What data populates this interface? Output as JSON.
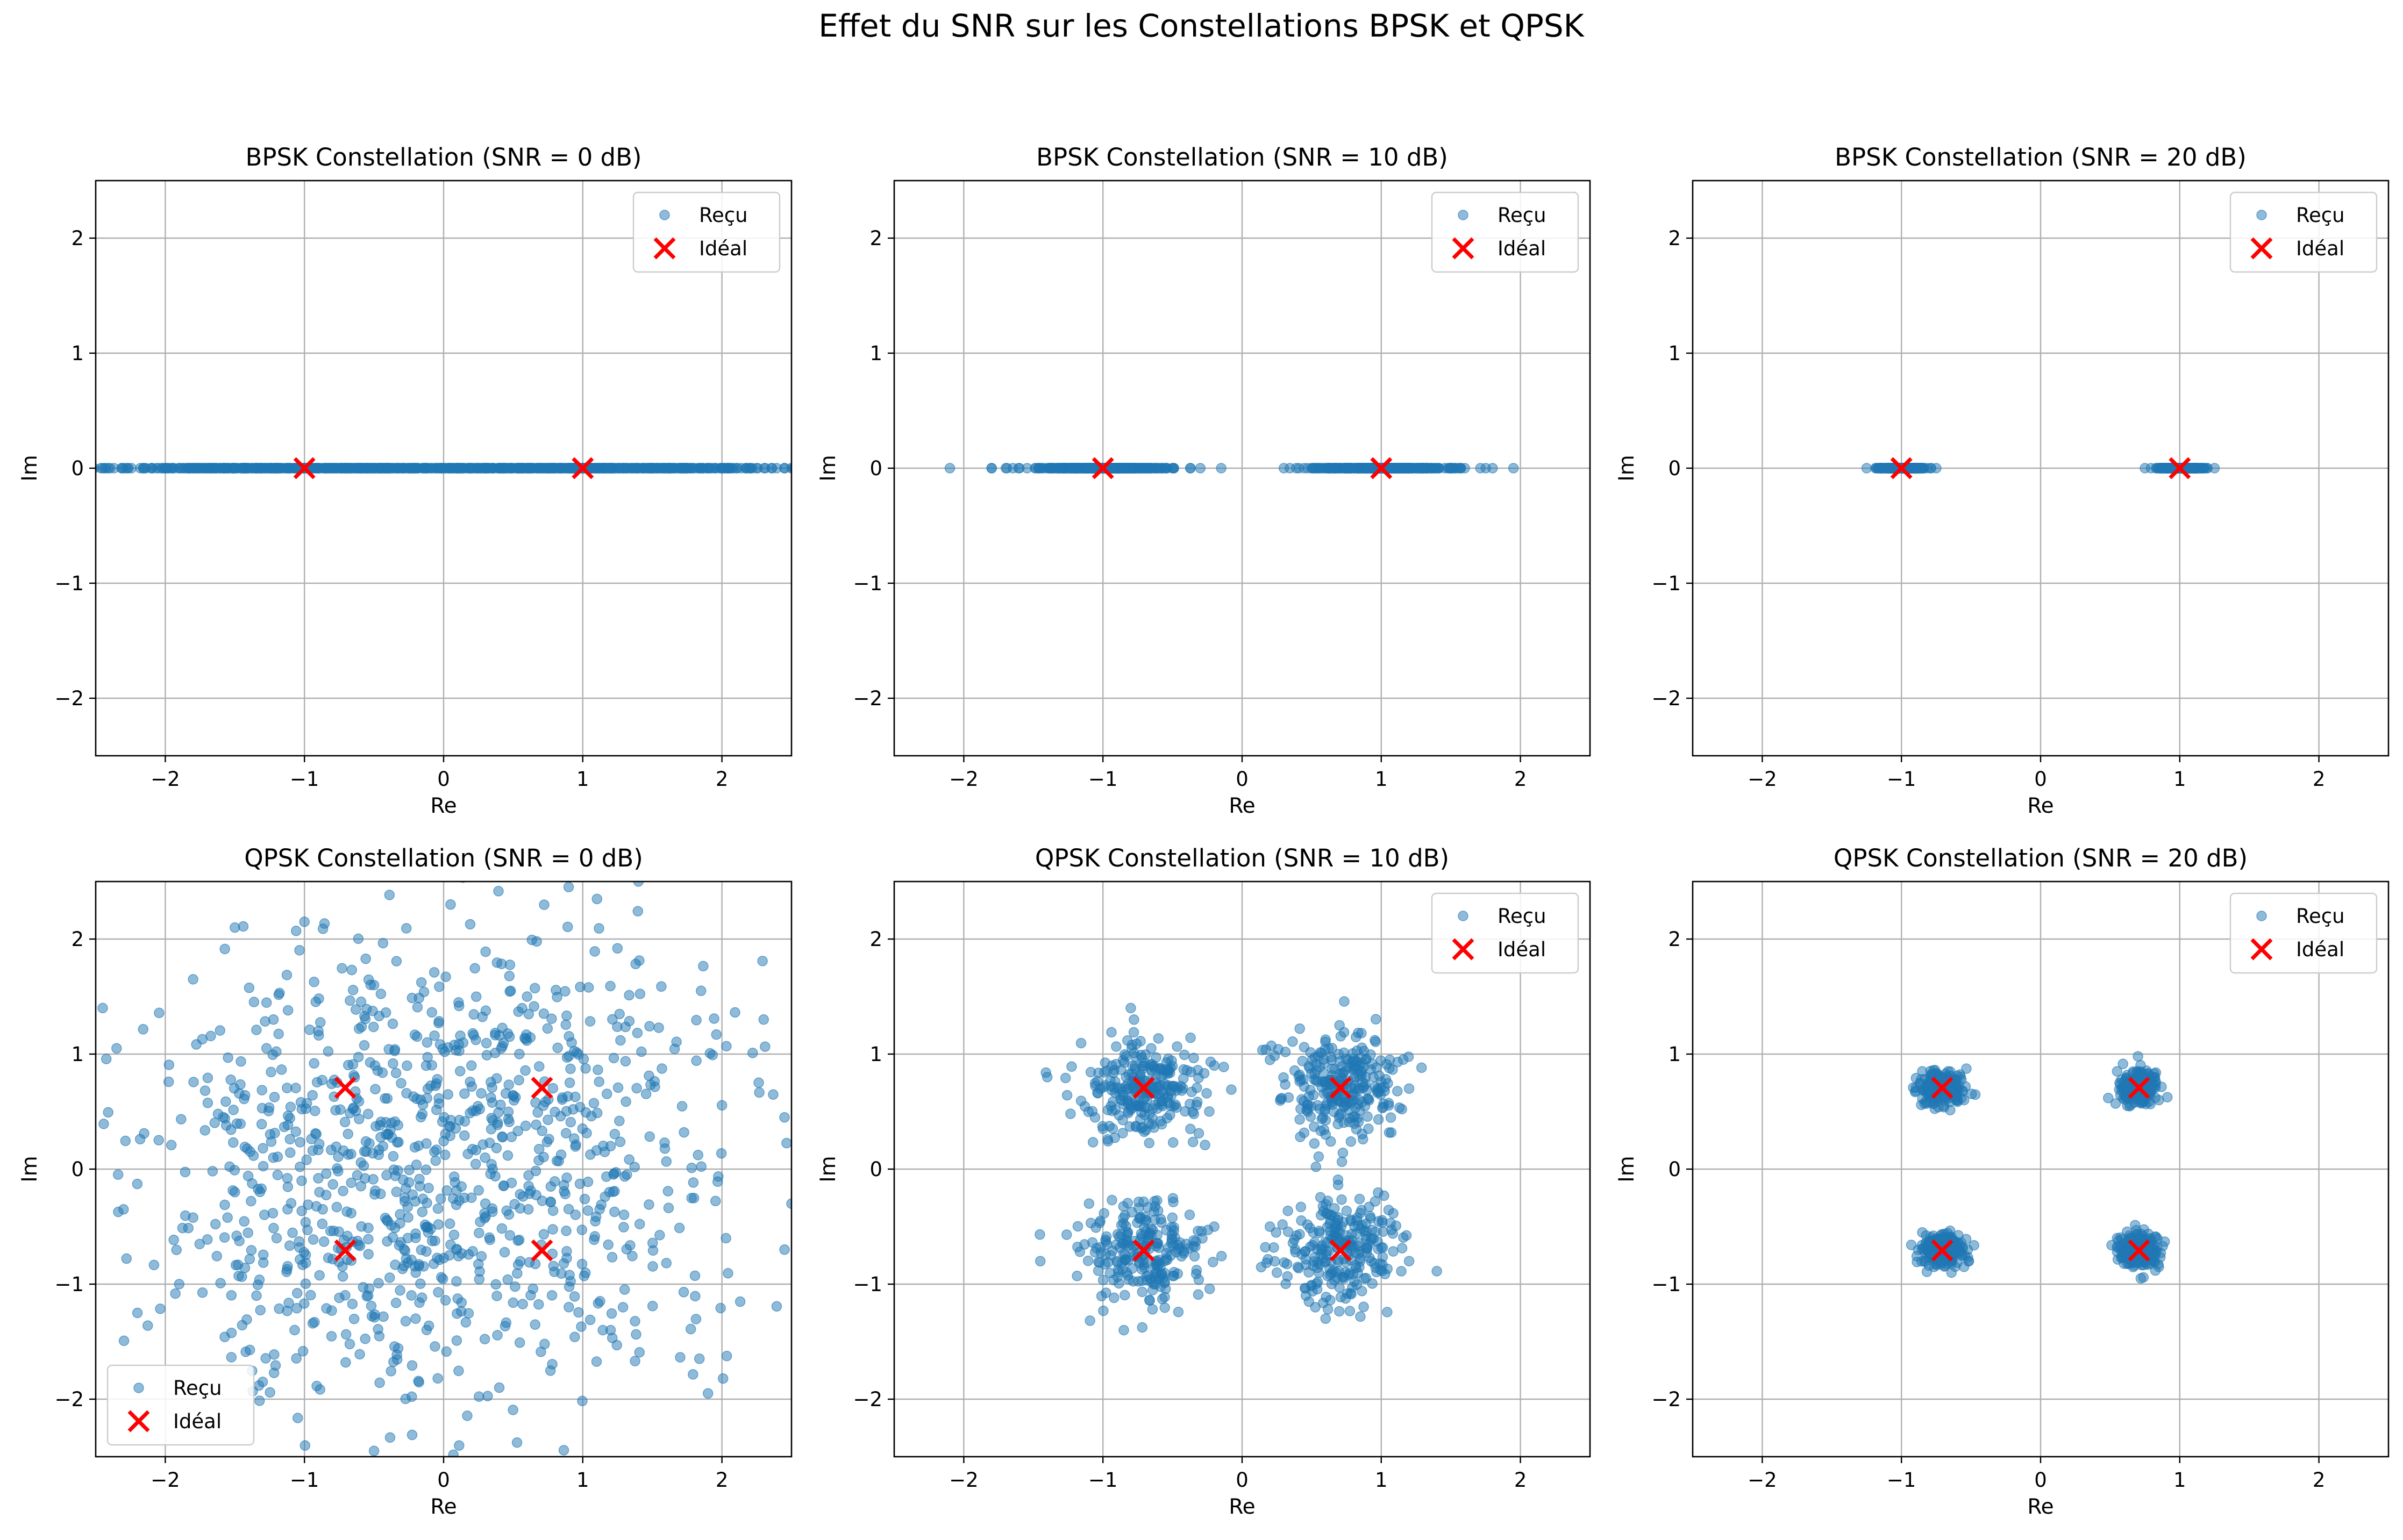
{
  "figure": {
    "title": "Effet du SNR sur les Constellations BPSK et QPSK"
  },
  "colors": {
    "received": "#1f77b4",
    "ideal": "#ff0000",
    "grid": "#b0b0b0",
    "axes": "#000000"
  },
  "chart_data": [
    {
      "type": "scatter",
      "title": "BPSK Constellation (SNR = 0 dB)",
      "xlabel": "Re",
      "ylabel": "Im",
      "xlim": [
        -2.5,
        2.5
      ],
      "ylim": [
        -2.5,
        2.5
      ],
      "xticks": [
        -2,
        -1,
        0,
        1,
        2
      ],
      "yticks": [
        -2,
        -1,
        0,
        1,
        2
      ],
      "grid": true,
      "legend_loc": "upper right",
      "modulation": "BPSK",
      "snr_db": 0,
      "spread": 0.7,
      "seed": 11,
      "series": [
        {
          "name": "Reçu",
          "marker": "circle",
          "points": [
            [
              -2.45,
              0
            ],
            [
              -2.3,
              0
            ],
            [
              -2.1,
              0
            ],
            [
              -1.9,
              0
            ],
            [
              -1.7,
              0
            ],
            [
              -1.5,
              0
            ],
            [
              -1.3,
              0
            ],
            [
              -1.0,
              0
            ],
            [
              -0.7,
              0
            ],
            [
              -0.4,
              0
            ],
            [
              -0.1,
              0
            ],
            [
              0.2,
              0
            ],
            [
              0.5,
              0
            ],
            [
              0.8,
              0
            ],
            [
              1.1,
              0
            ],
            [
              1.4,
              0
            ],
            [
              1.7,
              0
            ],
            [
              2.0,
              0
            ],
            [
              2.2,
              0
            ],
            [
              2.45,
              0
            ]
          ]
        },
        {
          "name": "Idéal",
          "marker": "x",
          "points": [
            [
              -1,
              0
            ],
            [
              1,
              0
            ]
          ]
        }
      ]
    },
    {
      "type": "scatter",
      "title": "BPSK Constellation (SNR = 10 dB)",
      "xlabel": "Re",
      "ylabel": "Im",
      "xlim": [
        -2.5,
        2.5
      ],
      "ylim": [
        -2.5,
        2.5
      ],
      "xticks": [
        -2,
        -1,
        0,
        1,
        2
      ],
      "yticks": [
        -2,
        -1,
        0,
        1,
        2
      ],
      "grid": true,
      "legend_loc": "upper right",
      "modulation": "BPSK",
      "snr_db": 10,
      "spread": 0.22,
      "seed": 23,
      "series": [
        {
          "name": "Reçu",
          "marker": "circle",
          "points": [
            [
              -2.1,
              0
            ],
            [
              -1.8,
              0
            ],
            [
              -1.6,
              0
            ],
            [
              -1.3,
              0
            ],
            [
              -1.0,
              0
            ],
            [
              -0.7,
              0
            ],
            [
              -0.5,
              0
            ],
            [
              -0.3,
              0
            ],
            [
              -0.15,
              0
            ],
            [
              0.3,
              0
            ],
            [
              0.5,
              0
            ],
            [
              0.8,
              0
            ],
            [
              1.0,
              0
            ],
            [
              1.3,
              0
            ],
            [
              1.6,
              0
            ],
            [
              1.8,
              0
            ],
            [
              1.95,
              0
            ]
          ]
        },
        {
          "name": "Idéal",
          "marker": "x",
          "points": [
            [
              -1,
              0
            ],
            [
              1,
              0
            ]
          ]
        }
      ]
    },
    {
      "type": "scatter",
      "title": "BPSK Constellation (SNR = 20 dB)",
      "xlabel": "Re",
      "ylabel": "Im",
      "xlim": [
        -2.5,
        2.5
      ],
      "ylim": [
        -2.5,
        2.5
      ],
      "xticks": [
        -2,
        -1,
        0,
        1,
        2
      ],
      "yticks": [
        -2,
        -1,
        0,
        1,
        2
      ],
      "grid": true,
      "legend_loc": "upper right",
      "modulation": "BPSK",
      "snr_db": 20,
      "spread": 0.07,
      "seed": 37,
      "series": [
        {
          "name": "Reçu",
          "marker": "circle",
          "points": [
            [
              -1.25,
              0
            ],
            [
              -1.1,
              0
            ],
            [
              -1.0,
              0
            ],
            [
              -0.9,
              0
            ],
            [
              -0.75,
              0
            ],
            [
              0.75,
              0
            ],
            [
              0.9,
              0
            ],
            [
              1.0,
              0
            ],
            [
              1.1,
              0
            ],
            [
              1.25,
              0
            ]
          ]
        },
        {
          "name": "Idéal",
          "marker": "x",
          "points": [
            [
              -1,
              0
            ],
            [
              1,
              0
            ]
          ]
        }
      ]
    },
    {
      "type": "scatter",
      "title": "QPSK Constellation (SNR = 0 dB)",
      "xlabel": "Re",
      "ylabel": "Im",
      "xlim": [
        -2.5,
        2.5
      ],
      "ylim": [
        -2.5,
        2.5
      ],
      "xticks": [
        -2,
        -1,
        0,
        1,
        2
      ],
      "yticks": [
        -2,
        -1,
        0,
        1,
        2
      ],
      "grid": true,
      "legend_loc": "lower left",
      "modulation": "QPSK",
      "snr_db": 0,
      "spread": 0.7,
      "seed": 51,
      "series": [
        {
          "name": "Reçu",
          "marker": "circle",
          "points": [
            [
              -2.45,
              1.4
            ],
            [
              -2.35,
              1.05
            ],
            [
              -2.3,
              -0.35
            ],
            [
              -2.2,
              -1.25
            ],
            [
              -1.8,
              1.65
            ],
            [
              -1.5,
              2.1
            ],
            [
              -1.0,
              2.15
            ],
            [
              -0.5,
              1.6
            ],
            [
              0.05,
              2.3
            ],
            [
              0.6,
              1.5
            ],
            [
              1.4,
              2.5
            ],
            [
              1.85,
              1.55
            ],
            [
              2.3,
              1.3
            ],
            [
              2.45,
              0.45
            ],
            [
              2.45,
              -0.7
            ],
            [
              1.9,
              -1.95
            ],
            [
              1.2,
              -1.4
            ],
            [
              0.4,
              -1.9
            ],
            [
              -0.5,
              -2.45
            ],
            [
              -1.3,
              -1.85
            ],
            [
              -1.9,
              -1.0
            ],
            [
              -1.5,
              -0.2
            ],
            [
              -0.4,
              0.3
            ],
            [
              0.3,
              -0.3
            ],
            [
              1.2,
              0.2
            ],
            [
              -0.9,
              1.2
            ],
            [
              0.9,
              -1.2
            ],
            [
              -0.2,
              -0.9
            ],
            [
              0.2,
              0.9
            ],
            [
              -1.2,
              -0.6
            ]
          ]
        },
        {
          "name": "Idéal",
          "marker": "x",
          "points": [
            [
              -0.707,
              0.707
            ],
            [
              0.707,
              0.707
            ],
            [
              -0.707,
              -0.707
            ],
            [
              0.707,
              -0.707
            ]
          ]
        }
      ]
    },
    {
      "type": "scatter",
      "title": "QPSK Constellation (SNR = 10 dB)",
      "xlabel": "Re",
      "ylabel": "Im",
      "xlim": [
        -2.5,
        2.5
      ],
      "ylim": [
        -2.5,
        2.5
      ],
      "xticks": [
        -2,
        -1,
        0,
        1,
        2
      ],
      "yticks": [
        -2,
        -1,
        0,
        1,
        2
      ],
      "grid": true,
      "legend_loc": "upper right",
      "modulation": "QPSK",
      "snr_db": 10,
      "spread": 0.22,
      "seed": 67,
      "series": [
        {
          "name": "Reçu",
          "marker": "circle",
          "points": [
            [
              -1.4,
              0.8
            ],
            [
              -0.8,
              1.4
            ],
            [
              -0.2,
              0.9
            ],
            [
              -1.0,
              0.35
            ],
            [
              0.2,
              0.95
            ],
            [
              0.7,
              1.25
            ],
            [
              1.2,
              0.7
            ],
            [
              0.6,
              0.3
            ],
            [
              -1.45,
              -0.8
            ],
            [
              -0.85,
              -1.4
            ],
            [
              -0.2,
              -0.5
            ],
            [
              -1.1,
              -0.3
            ],
            [
              0.2,
              -0.5
            ],
            [
              0.6,
              -1.3
            ],
            [
              1.2,
              -0.8
            ],
            [
              0.25,
              -0.9
            ]
          ]
        },
        {
          "name": "Idéal",
          "marker": "x",
          "points": [
            [
              -0.707,
              0.707
            ],
            [
              0.707,
              0.707
            ],
            [
              -0.707,
              -0.707
            ],
            [
              0.707,
              -0.707
            ]
          ]
        }
      ]
    },
    {
      "type": "scatter",
      "title": "QPSK Constellation (SNR = 20 dB)",
      "xlabel": "Re",
      "ylabel": "Im",
      "xlim": [
        -2.5,
        2.5
      ],
      "ylim": [
        -2.5,
        2.5
      ],
      "xticks": [
        -2,
        -1,
        0,
        1,
        2
      ],
      "yticks": [
        -2,
        -1,
        0,
        1,
        2
      ],
      "grid": true,
      "legend_loc": "upper right",
      "modulation": "QPSK",
      "snr_db": 20,
      "spread": 0.07,
      "seed": 83,
      "series": [
        {
          "name": "Reçu",
          "marker": "circle",
          "points": [
            [
              -0.85,
              0.85
            ],
            [
              -0.55,
              0.6
            ],
            [
              -0.7,
              0.55
            ],
            [
              0.55,
              0.85
            ],
            [
              0.85,
              0.6
            ],
            [
              0.7,
              0.98
            ],
            [
              -0.85,
              -0.55
            ],
            [
              -0.55,
              -0.85
            ],
            [
              -0.7,
              -0.6
            ],
            [
              0.55,
              -0.6
            ],
            [
              0.85,
              -0.85
            ],
            [
              0.72,
              -0.95
            ]
          ]
        },
        {
          "name": "Idéal",
          "marker": "x",
          "points": [
            [
              -0.707,
              0.707
            ],
            [
              0.707,
              0.707
            ],
            [
              -0.707,
              -0.707
            ],
            [
              0.707,
              -0.707
            ]
          ]
        }
      ]
    }
  ]
}
